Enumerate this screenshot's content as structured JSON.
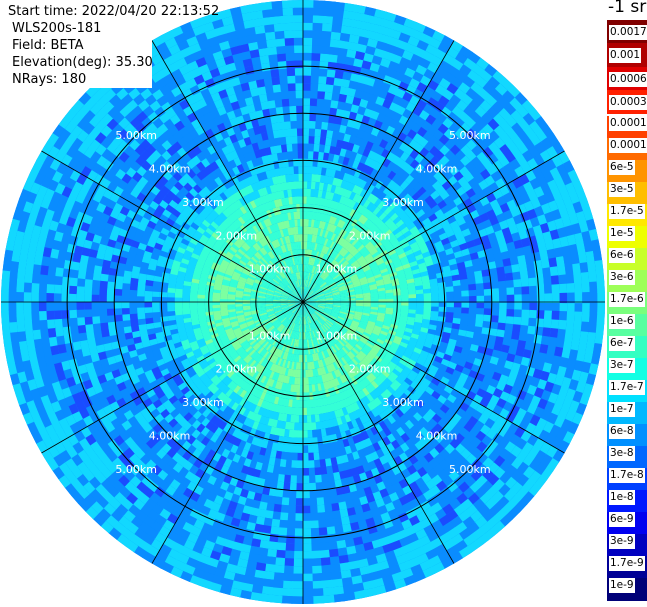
{
  "info": {
    "start_time": "Start time: 2022/04/20 22:13:52",
    "device": "WLS200s-181",
    "field": "Field: BETA",
    "elevation": "Elevation(deg): 35.30",
    "nrays": "NRays: 180"
  },
  "colorbar": {
    "unit": "-1 sr",
    "upper_labels": [
      "0.0017",
      "0.001",
      "0.0006",
      "0.0003"
    ],
    "lower_labels": [
      "0.00017",
      "0.0001",
      "6e-5",
      "3e-5",
      "1.7e-5",
      "1e-5",
      "6e-6",
      "3e-6",
      "1.7e-6",
      "1e-6",
      "6e-7",
      "3e-7",
      "1.7e-7",
      "1e-7",
      "6e-8",
      "3e-8",
      "1.7e-8",
      "1e-8",
      "6e-9",
      "3e-9",
      "1.7e-9",
      "1e-9"
    ],
    "upper_colors": [
      "#800000",
      "#b00000",
      "#e00000",
      "#ff2000"
    ],
    "lower_colors": [
      "#ff4000",
      "#ff6a00",
      "#ff9400",
      "#ffbe00",
      "#ffe800",
      "#eeff00",
      "#c8ff28",
      "#9eff58",
      "#7aff7d",
      "#58ffa0",
      "#34ffc2",
      "#12ffe4",
      "#00e0ff",
      "#00b8ff",
      "#0090ff",
      "#0068ff",
      "#0040ff",
      "#0018ff",
      "#0000f0",
      "#0000c0",
      "#000096",
      "#000078"
    ]
  },
  "chart_data": {
    "type": "heatmap",
    "projection": "polar (PPI scan)",
    "range_rings_km": [
      1.0,
      2.0,
      3.0,
      4.0,
      5.0
    ],
    "ring_labels": [
      "1.00km",
      "2.00km",
      "3.00km",
      "4.00km",
      "5.00km"
    ],
    "max_range_km": 6.4,
    "spoke_angles_deg": [
      0,
      30,
      60,
      90,
      120,
      150,
      180,
      210,
      240,
      270,
      300,
      330
    ],
    "color_scale": "log",
    "beta_profile": [
      {
        "range_km": 0.0,
        "beta": "3e-6"
      },
      {
        "range_km": 1.0,
        "beta": "3e-6"
      },
      {
        "range_km": 2.0,
        "beta": "6e-7"
      },
      {
        "range_km": 2.5,
        "beta": "1e-7"
      },
      {
        "range_km": 3.5,
        "beta": "3e-8"
      },
      {
        "range_km": 4.5,
        "beta": "3e-8"
      },
      {
        "range_km": 5.5,
        "beta": "1.7e-8"
      },
      {
        "range_km": 6.4,
        "beta": "3e-8"
      }
    ],
    "colors": {
      "inner": "#7dffa0",
      "core": "#34ffd6",
      "mid": "#12d8ff",
      "outer": "#0a8cff",
      "dark": "#1a4cff"
    }
  }
}
